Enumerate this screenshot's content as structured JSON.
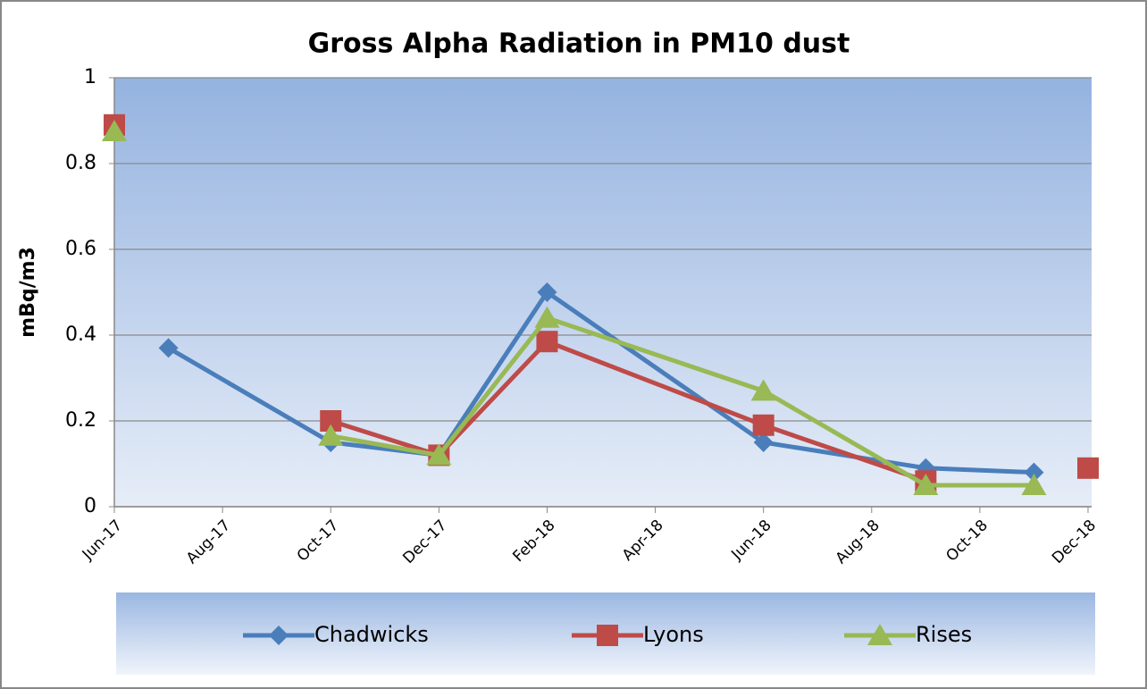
{
  "chart_data": {
    "type": "line",
    "title": "Gross Alpha Radiation in PM10 dust",
    "y_label": "mBq/m3",
    "x": [
      "Jun-17",
      "Jul-17",
      "Oct-17",
      "Dec-17",
      "Feb-18",
      "Jun-18",
      "Sep-18",
      "Nov-18",
      "Dec-18"
    ],
    "series": [
      {
        "name": "Chadwicks",
        "color": "#4a7ebb",
        "marker": "diamond",
        "values": [
          null,
          0.37,
          0.15,
          0.12,
          0.5,
          0.15,
          0.09,
          0.08,
          null
        ]
      },
      {
        "name": "Lyons",
        "color": "#be4b48",
        "marker": "square",
        "values": [
          0.89,
          null,
          0.2,
          0.12,
          0.385,
          0.19,
          0.06,
          null,
          0.09
        ]
      },
      {
        "name": "Rises",
        "color": "#98b954",
        "marker": "triangle",
        "values": [
          0.875,
          null,
          0.165,
          0.12,
          0.44,
          0.27,
          0.05,
          0.05,
          null
        ]
      }
    ],
    "xlim": [
      "Jun-17",
      "Dec-18"
    ],
    "xticks": [
      "Jun-17",
      "Aug-17",
      "Oct-17",
      "Dec-17",
      "Feb-18",
      "Apr-18",
      "Jun-18",
      "Aug-18",
      "Oct-18",
      "Dec-18"
    ],
    "ylim": [
      0,
      1
    ],
    "yticks": [
      0,
      0.2,
      0.4,
      0.6,
      0.8,
      1
    ],
    "grid": true,
    "legend": "bottom"
  }
}
